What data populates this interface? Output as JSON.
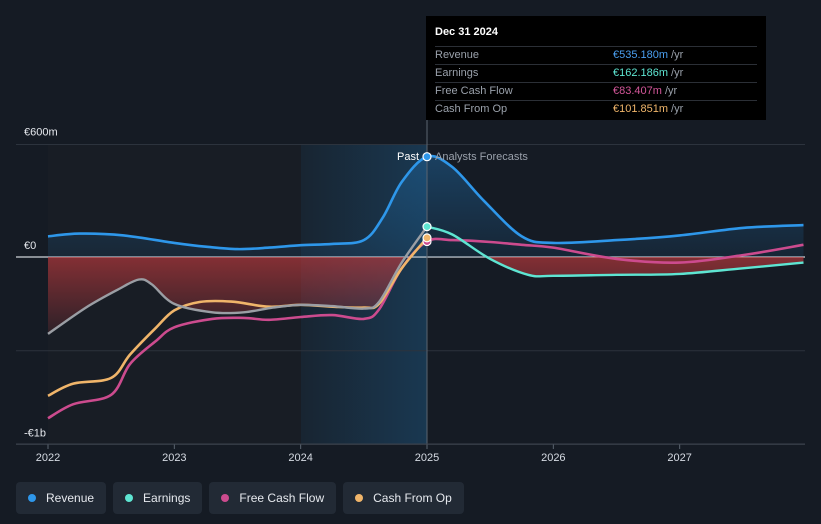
{
  "colors": {
    "revenue": "#2e97ea",
    "earnings": "#5ee5d2",
    "free_cash_flow": "#cc4b8e",
    "cash_from_op": "#f0b56a",
    "background": "#151b24"
  },
  "tooltip": {
    "date": "Dec 31 2024",
    "rows": [
      {
        "label": "Revenue",
        "value": "€535.180m",
        "unit": "/yr",
        "color": "#4a9ff0"
      },
      {
        "label": "Earnings",
        "value": "€162.186m",
        "unit": "/yr",
        "color": "#5ee5d2"
      },
      {
        "label": "Free Cash Flow",
        "value": "€83.407m",
        "unit": "/yr",
        "color": "#d4579a"
      },
      {
        "label": "Cash From Op",
        "value": "€101.851m",
        "unit": "/yr",
        "color": "#f0b56a"
      }
    ]
  },
  "legend": [
    {
      "label": "Revenue",
      "color": "#2e97ea"
    },
    {
      "label": "Earnings",
      "color": "#5ee5d2"
    },
    {
      "label": "Free Cash Flow",
      "color": "#cc4b8e"
    },
    {
      "label": "Cash From Op",
      "color": "#f0b56a"
    }
  ],
  "chart_data": {
    "type": "line",
    "x_unit": "year",
    "past_label": "Past",
    "forecast_label": "Analysts Forecasts",
    "forecast_start": 2025.0,
    "y_labels": [
      {
        "value": 600,
        "text": "€600m"
      },
      {
        "value": 0,
        "text": "€0"
      },
      {
        "value": -1000,
        "text": "-€1b"
      }
    ],
    "ylim": [
      -1000,
      600
    ],
    "xlim": [
      2021.8,
      2027.98
    ],
    "x_ticks": [
      {
        "value": 2022,
        "text": "2022"
      },
      {
        "value": 2023,
        "text": "2023"
      },
      {
        "value": 2024,
        "text": "2024"
      },
      {
        "value": 2025,
        "text": "2025"
      },
      {
        "value": 2026,
        "text": "2026"
      },
      {
        "value": 2027,
        "text": "2027"
      }
    ],
    "grid": true,
    "legend_position": "bottom-left",
    "series": [
      {
        "name": "Revenue",
        "key": "revenue",
        "points": [
          [
            2022.0,
            110
          ],
          [
            2022.25,
            125
          ],
          [
            2022.6,
            115
          ],
          [
            2023.0,
            75
          ],
          [
            2023.25,
            55
          ],
          [
            2023.5,
            42
          ],
          [
            2023.75,
            50
          ],
          [
            2024.0,
            63
          ],
          [
            2024.25,
            70
          ],
          [
            2024.5,
            90
          ],
          [
            2024.65,
            210
          ],
          [
            2024.8,
            400
          ],
          [
            2025.0,
            535
          ],
          [
            2025.2,
            480
          ],
          [
            2025.45,
            300
          ],
          [
            2025.75,
            110
          ],
          [
            2026.0,
            75
          ],
          [
            2026.5,
            90
          ],
          [
            2027.0,
            115
          ],
          [
            2027.5,
            155
          ],
          [
            2027.98,
            170
          ]
        ]
      },
      {
        "name": "Earnings",
        "key": "earnings",
        "points": [
          [
            2022.0,
            -410
          ],
          [
            2022.3,
            -270
          ],
          [
            2022.55,
            -175
          ],
          [
            2022.72,
            -120
          ],
          [
            2022.82,
            -145
          ],
          [
            2023.0,
            -250
          ],
          [
            2023.3,
            -295
          ],
          [
            2023.55,
            -295
          ],
          [
            2023.78,
            -270
          ],
          [
            2024.0,
            -255
          ],
          [
            2024.25,
            -262
          ],
          [
            2024.5,
            -275
          ],
          [
            2024.62,
            -240
          ],
          [
            2024.8,
            -30
          ],
          [
            2025.0,
            162
          ],
          [
            2025.2,
            120
          ],
          [
            2025.5,
            -10
          ],
          [
            2025.8,
            -95
          ],
          [
            2026.0,
            -100
          ],
          [
            2026.5,
            -95
          ],
          [
            2027.0,
            -90
          ],
          [
            2027.5,
            -60
          ],
          [
            2027.98,
            -30
          ]
        ]
      },
      {
        "name": "Free Cash Flow",
        "key": "free_cash_flow",
        "points": [
          [
            2022.0,
            -860
          ],
          [
            2022.2,
            -785
          ],
          [
            2022.5,
            -735
          ],
          [
            2022.65,
            -570
          ],
          [
            2022.85,
            -450
          ],
          [
            2023.0,
            -375
          ],
          [
            2023.3,
            -330
          ],
          [
            2023.55,
            -325
          ],
          [
            2023.75,
            -335
          ],
          [
            2024.0,
            -320
          ],
          [
            2024.25,
            -310
          ],
          [
            2024.5,
            -330
          ],
          [
            2024.62,
            -280
          ],
          [
            2024.8,
            -60
          ],
          [
            2025.0,
            83
          ],
          [
            2025.2,
            90
          ],
          [
            2025.5,
            80
          ],
          [
            2025.75,
            65
          ],
          [
            2026.0,
            50
          ],
          [
            2026.5,
            -10
          ],
          [
            2027.0,
            -30
          ],
          [
            2027.5,
            10
          ],
          [
            2027.98,
            65
          ]
        ]
      },
      {
        "name": "Cash From Op",
        "key": "cash_from_op",
        "points": [
          [
            2022.0,
            -740
          ],
          [
            2022.2,
            -675
          ],
          [
            2022.5,
            -645
          ],
          [
            2022.65,
            -520
          ],
          [
            2022.85,
            -380
          ],
          [
            2023.0,
            -285
          ],
          [
            2023.2,
            -240
          ],
          [
            2023.45,
            -238
          ],
          [
            2023.75,
            -265
          ],
          [
            2024.0,
            -255
          ],
          [
            2024.25,
            -265
          ],
          [
            2024.5,
            -270
          ],
          [
            2024.62,
            -250
          ],
          [
            2024.8,
            -60
          ],
          [
            2025.0,
            102
          ]
        ]
      }
    ]
  }
}
